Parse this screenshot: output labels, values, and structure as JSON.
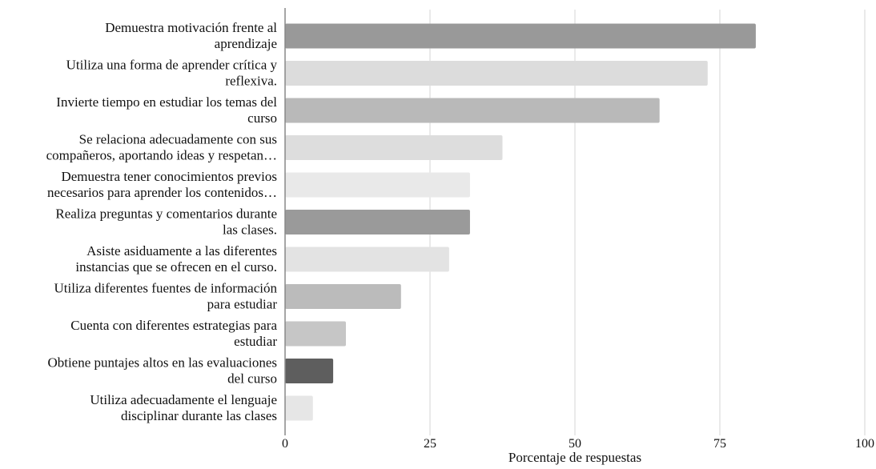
{
  "chart_data": {
    "type": "bar",
    "orientation": "horizontal",
    "title": "",
    "xlabel": "Porcentaje de respuestas",
    "ylabel": "",
    "xlim": [
      0,
      100
    ],
    "x_ticks": [
      0,
      25,
      50,
      75,
      100
    ],
    "grid": "vertical",
    "legend": "none",
    "categories": [
      [
        "Demuestra motivación frente al",
        "aprendizaje"
      ],
      [
        "Utiliza una forma de aprender crítica y",
        "reflexiva."
      ],
      [
        "Invierte tiempo en estudiar los temas del",
        "curso"
      ],
      [
        "Se relaciona adecuadamente con sus",
        "compañeros, aportando ideas y respetan…"
      ],
      [
        "Demuestra tener conocimientos previos",
        "necesarios para aprender los contenidos…"
      ],
      [
        "Realiza preguntas y comentarios durante",
        "las clases."
      ],
      [
        "Asiste asiduamente a las diferentes",
        "instancias que se ofrecen en el curso."
      ],
      [
        "Utiliza diferentes fuentes de información",
        "para estudiar"
      ],
      [
        "Cuenta con diferentes estrategias para",
        "estudiar"
      ],
      [
        "Obtiene puntajes altos en las evaluaciones",
        "del curso"
      ],
      [
        "Utiliza adecuadamente el lenguaje",
        "disciplinar durante las clases"
      ]
    ],
    "values": [
      81.2,
      72.9,
      64.6,
      37.5,
      31.9,
      31.9,
      28.3,
      20.0,
      10.5,
      8.3,
      4.8
    ],
    "colors": [
      "#999999",
      "#dcdcdc",
      "#b9b9b9",
      "#dddddd",
      "#e9e9e9",
      "#9a9a9a",
      "#e3e3e3",
      "#bbbbbb",
      "#c6c6c6",
      "#5e5e5e",
      "#e6e6e6"
    ],
    "axis_color": "#888888",
    "grid_color": "#d6d6d6"
  }
}
